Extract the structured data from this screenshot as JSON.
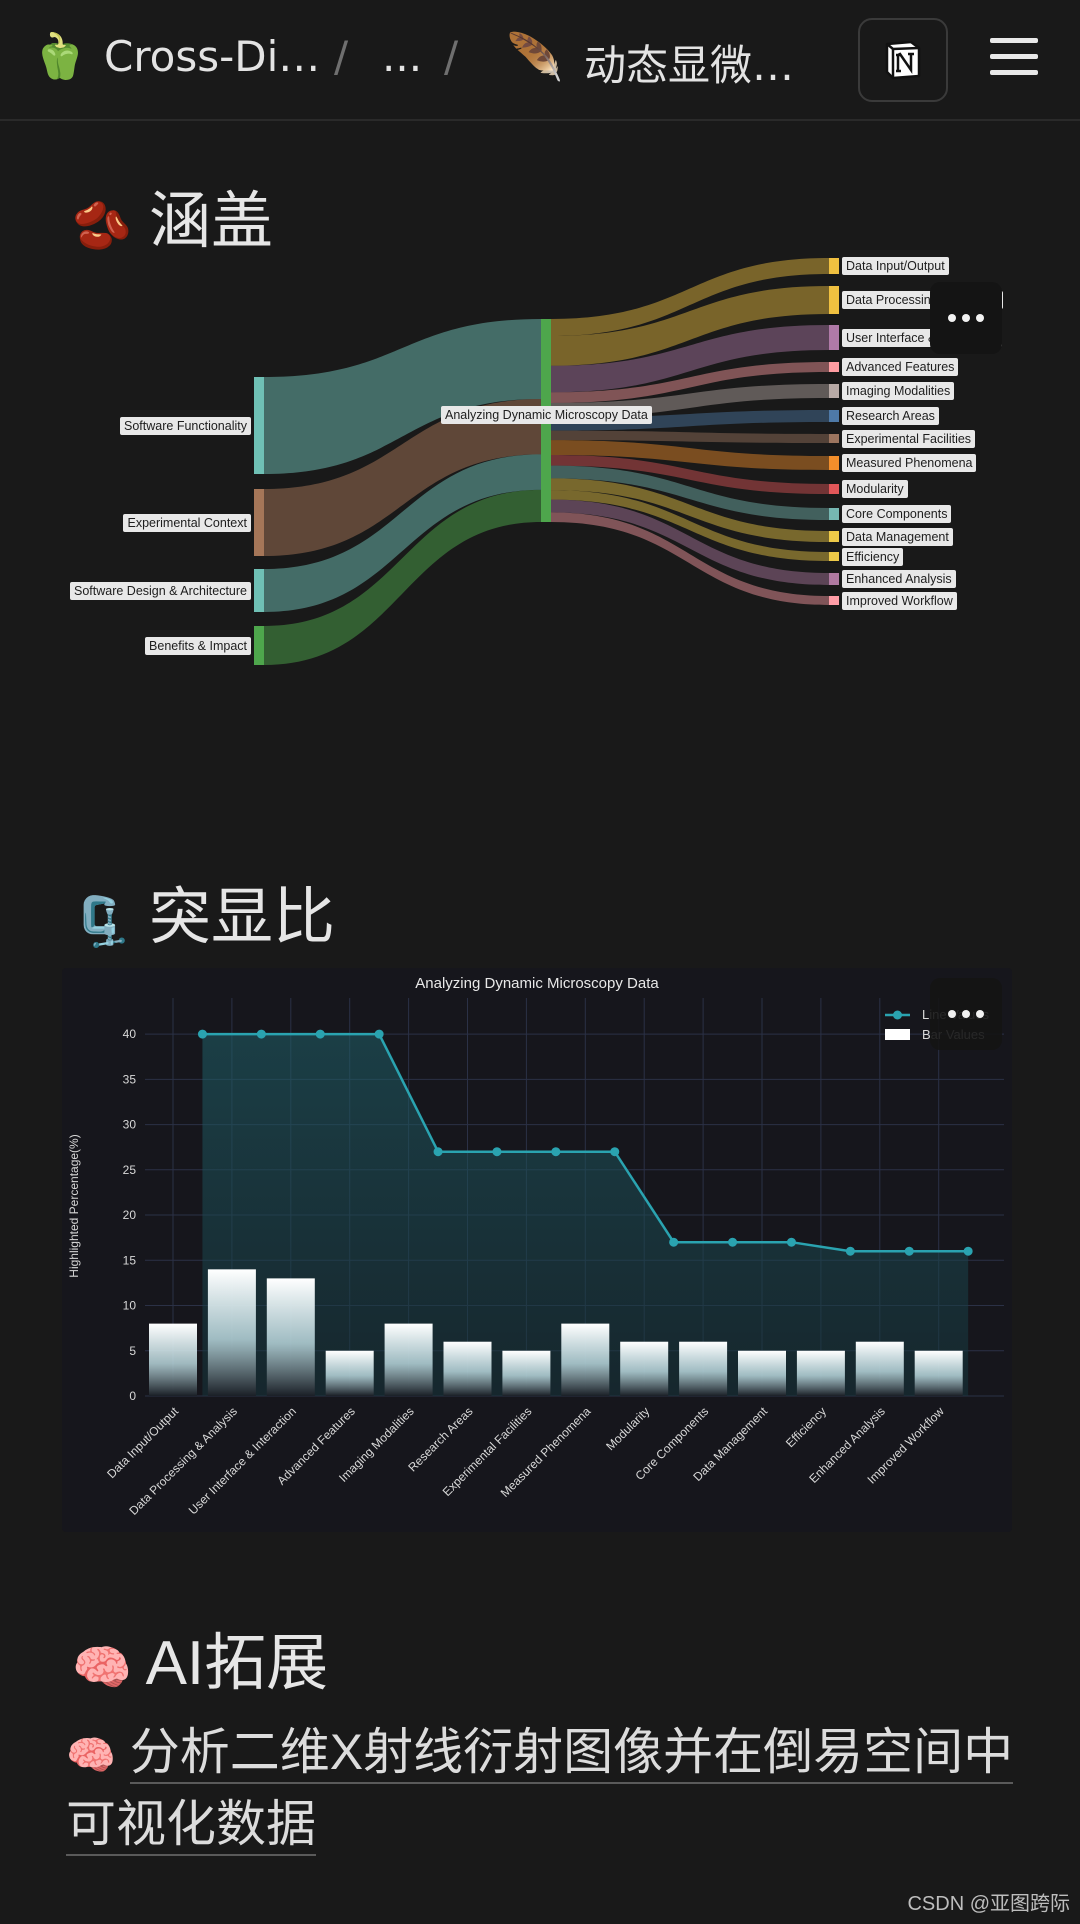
{
  "topbar": {
    "workspace_emoji": "🫑",
    "workspace_title": "Cross-Di…",
    "separator": "/",
    "ellipsis": "...",
    "page_emoji": "🪶",
    "page_title": "动态显微…",
    "notion_icon": "notion-logo-icon",
    "menu_icon": "hamburger-menu-icon"
  },
  "sections": {
    "coverage": {
      "emoji": "🫘",
      "title": "涵盖"
    },
    "highlight": {
      "emoji": "🗜️",
      "title": "突显比"
    },
    "ai": {
      "emoji": "🧠",
      "title": "AI拓展",
      "item_emoji": "🧠",
      "item_line1": "分析二维X射线衍射图像并在倒易空间中",
      "item_line2": "可视化数据"
    }
  },
  "sankey": {
    "left_nodes": [
      {
        "label": "Software Functionality",
        "color": "#6fc0b5"
      },
      {
        "label": "Experimental Context",
        "color": "#a57658"
      },
      {
        "label": "Software Design & Architecture",
        "color": "#6fc0b5"
      },
      {
        "label": "Benefits & Impact",
        "color": "#4ea64c"
      }
    ],
    "center_node": {
      "label": "Analyzing Dynamic Microscopy Data",
      "color": "#4ea64c"
    },
    "right_nodes": [
      {
        "label": "Data Input/Output",
        "color": "#f0c040"
      },
      {
        "label": "Data Processing & Analysis",
        "color": "#f0c040"
      },
      {
        "label": "User Interface & Interaction",
        "color": "#b07aa8"
      },
      {
        "label": "Advanced Features",
        "color": "#ff9da2"
      },
      {
        "label": "Imaging Modalities",
        "color": "#b8aaa6"
      },
      {
        "label": "Research Areas",
        "color": "#4e79a7"
      },
      {
        "label": "Experimental Facilities",
        "color": "#9c755f"
      },
      {
        "label": "Measured Phenomena",
        "color": "#f28e2b"
      },
      {
        "label": "Modularity",
        "color": "#e15759"
      },
      {
        "label": "Core Components",
        "color": "#76b7b2"
      },
      {
        "label": "Data Management",
        "color": "#edc948"
      },
      {
        "label": "Efficiency",
        "color": "#edc948"
      },
      {
        "label": "Enhanced Analysis",
        "color": "#b07aa1"
      },
      {
        "label": "Improved Workflow",
        "color": "#ff9da7"
      }
    ]
  },
  "chart_data": {
    "type": "bar",
    "title": "Analyzing Dynamic Microscopy Data",
    "ylabel": "Highlighted Percentage(%)",
    "xlabel": "",
    "ylim": [
      0,
      42
    ],
    "yticks": [
      0,
      5,
      10,
      15,
      20,
      25,
      30,
      35,
      40
    ],
    "grid": true,
    "legend_position": "top-right",
    "categories": [
      "Data Input/Output",
      "Data Processing & Analysis",
      "User Interface & Interaction",
      "Advanced Features",
      "Imaging Modalities",
      "Research Areas",
      "Experimental Facilities",
      "Measured Phenomena",
      "Modularity",
      "Core Components",
      "Data Management",
      "Efficiency",
      "Enhanced Analysis",
      "Improved Workflow"
    ],
    "series": [
      {
        "name": "Line Values",
        "type": "line",
        "color": "#2aa3b0",
        "values": [
          40,
          40,
          40,
          40,
          27,
          27,
          27,
          27,
          17,
          17,
          17,
          16,
          16,
          16
        ]
      },
      {
        "name": "Bar Values",
        "type": "bar",
        "color": "#ffffff",
        "values": [
          8,
          14,
          13,
          5,
          8,
          6,
          5,
          8,
          6,
          6,
          5,
          5,
          6,
          5
        ]
      }
    ]
  },
  "watermark": "CSDN @亚图跨际"
}
